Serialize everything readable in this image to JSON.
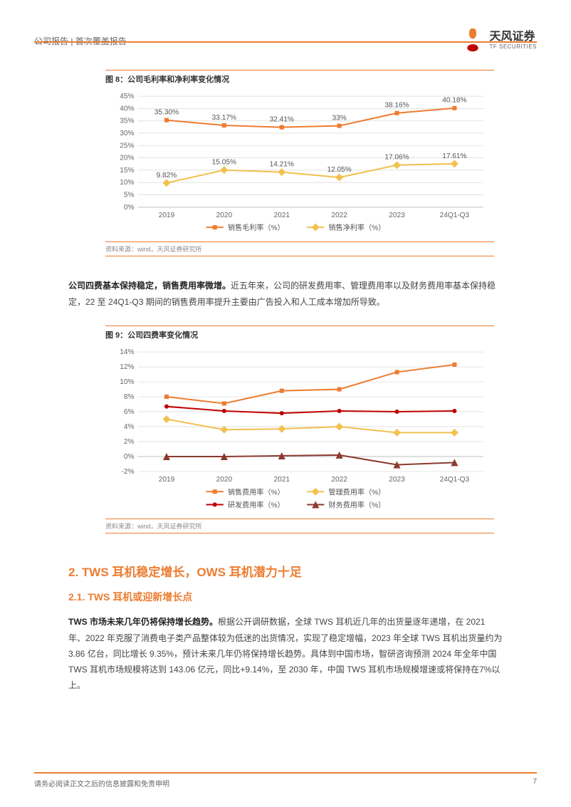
{
  "header": {
    "breadcrumb": "公司报告 | 首次覆盖报告",
    "brand_cn": "天风证券",
    "brand_en": "TF SECURITIES"
  },
  "chart8": {
    "type": "line",
    "title": "图 8：公司毛利率和净利率变化情况",
    "source": "资料来源：wind，天风证券研究所",
    "categories": [
      "2019",
      "2020",
      "2021",
      "2022",
      "2023",
      "24Q1-Q3"
    ],
    "ylim": [
      0,
      45
    ],
    "ytick_step": 5,
    "y_suffix": "%",
    "background_color": "#ffffff",
    "grid_color": "#d9d9d9",
    "axis_color": "#bfbfbf",
    "label_fontsize": 10,
    "series": [
      {
        "name": "销售毛利率（%）",
        "color": "#ed7d31",
        "marker": "square",
        "marker_size": 6,
        "line_width": 2,
        "values": [
          35.3,
          33.17,
          32.41,
          33,
          38.16,
          40.18
        ],
        "labels": [
          "35.30%",
          "33.17%",
          "32.41%",
          "33%",
          "38.16%",
          "40.18%"
        ]
      },
      {
        "name": "销售净利率（%）",
        "color": "#f2c14e",
        "marker": "diamond",
        "marker_size": 7,
        "line_width": 2,
        "values": [
          9.82,
          15.05,
          14.21,
          12.05,
          17.06,
          17.61
        ],
        "labels": [
          "9.82%",
          "15.05%",
          "14.21%",
          "12.05%",
          "17.06%",
          "17.61%"
        ]
      }
    ]
  },
  "para1": {
    "bold": "公司四费基本保持稳定，销售费用率微增。",
    "rest": "近五年来，公司的研发费用率、管理费用率以及财务费用率基本保持稳定，22 至 24Q1-Q3 期间的销售费用率提升主要由广告投入和人工成本增加所导致。"
  },
  "chart9": {
    "type": "line",
    "title": "图 9：公司四费率变化情况",
    "source": "资料来源：wind，天风证券研究所",
    "categories": [
      "2019",
      "2020",
      "2021",
      "2022",
      "2023",
      "24Q1-Q3"
    ],
    "ylim": [
      -2,
      14
    ],
    "ytick_step": 2,
    "y_suffix": "%",
    "background_color": "#ffffff",
    "grid_color": "#d9d9d9",
    "axis_color": "#bfbfbf",
    "label_fontsize": 10,
    "series": [
      {
        "name": "销售费用率（%）",
        "color": "#ed7d31",
        "marker": "square",
        "marker_size": 6,
        "line_width": 2,
        "values": [
          8.0,
          7.1,
          8.8,
          9.0,
          11.3,
          12.3
        ]
      },
      {
        "name": "管理费用率（%）",
        "color": "#f2c14e",
        "marker": "diamond",
        "marker_size": 7,
        "line_width": 2,
        "values": [
          5.0,
          3.6,
          3.7,
          4.0,
          3.2,
          3.2
        ]
      },
      {
        "name": "研发费用率（%）",
        "color": "#c00000",
        "marker": "circle",
        "marker_size": 6,
        "line_width": 2,
        "values": [
          6.7,
          6.1,
          5.8,
          6.1,
          6.0,
          6.1
        ]
      },
      {
        "name": "财务费用率（%）",
        "color": "#8b3a2f",
        "marker": "triangle",
        "marker_size": 7,
        "line_width": 2,
        "values": [
          0.0,
          0.0,
          0.1,
          0.2,
          -1.1,
          -0.8
        ]
      }
    ]
  },
  "section": {
    "h2": "2. TWS 耳机稳定增长，OWS 耳机潜力十足",
    "h3": "2.1. TWS 耳机或迎新增长点"
  },
  "para2": {
    "bold": "TWS 市场未来几年仍将保持增长趋势。",
    "rest": "根据公开调研数据，全球 TWS 耳机近几年的出货量逐年递增，在 2021 年、2022 年克服了消费电子类产品整体较为低迷的出货情况，实现了稳定增幅，2023 年全球 TWS 耳机出货量约为 3.86 亿台，同比增长 9.35%，预计未来几年仍将保持增长趋势。具体到中国市场，智研咨询预测 2024 年全年中国 TWS 耳机市场规模将达到 143.06 亿元，同比+9.14%，至 2030 年，中国 TWS 耳机市场规模增速或将保持在7%以上。"
  },
  "footer": {
    "disclaimer": "请务必阅读正文之后的信息披露和免责申明",
    "page": "7"
  },
  "logo_petals": [
    "#7cb342",
    "#f9a825",
    "#ed7d31",
    "#c00000"
  ]
}
